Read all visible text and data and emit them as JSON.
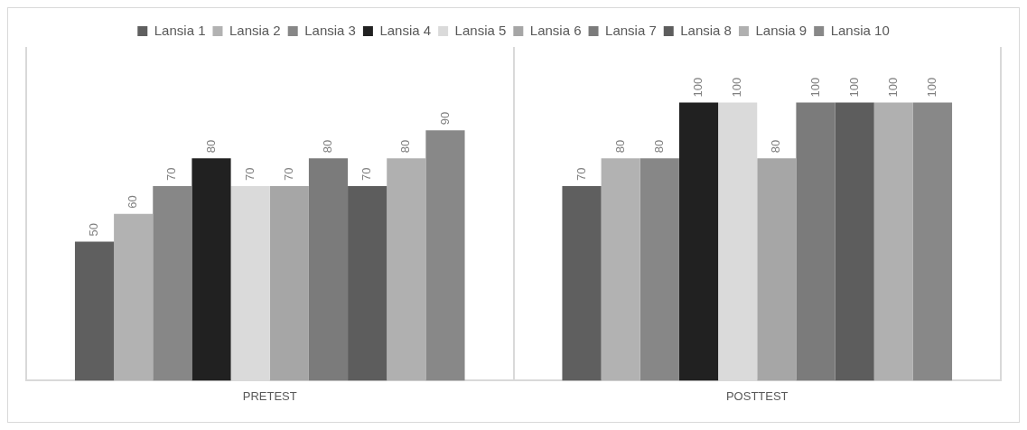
{
  "chart_data": {
    "type": "bar",
    "categories": [
      "PRETEST",
      "POSTTEST"
    ],
    "series": [
      {
        "name": "Lansia 1",
        "color": "#5f5f5f",
        "values": [
          50,
          70
        ]
      },
      {
        "name": "Lansia 2",
        "color": "#b2b2b2",
        "values": [
          60,
          80
        ]
      },
      {
        "name": "Lansia 3",
        "color": "#878787",
        "values": [
          70,
          80
        ]
      },
      {
        "name": "Lansia 4",
        "color": "#212121",
        "values": [
          80,
          100
        ]
      },
      {
        "name": "Lansia 5",
        "color": "#dadada",
        "values": [
          70,
          100
        ]
      },
      {
        "name": "Lansia 6",
        "color": "#a6a6a6",
        "values": [
          70,
          80
        ]
      },
      {
        "name": "Lansia 7",
        "color": "#7b7b7b",
        "values": [
          80,
          100
        ]
      },
      {
        "name": "Lansia 8",
        "color": "#5d5d5d",
        "values": [
          70,
          100
        ]
      },
      {
        "name": "Lansia 9",
        "color": "#b0b0b0",
        "values": [
          80,
          100
        ]
      },
      {
        "name": "Lansia 10",
        "color": "#888888",
        "values": [
          90,
          100
        ]
      }
    ],
    "data_labels": true,
    "legend": "top",
    "grid": "x"
  }
}
